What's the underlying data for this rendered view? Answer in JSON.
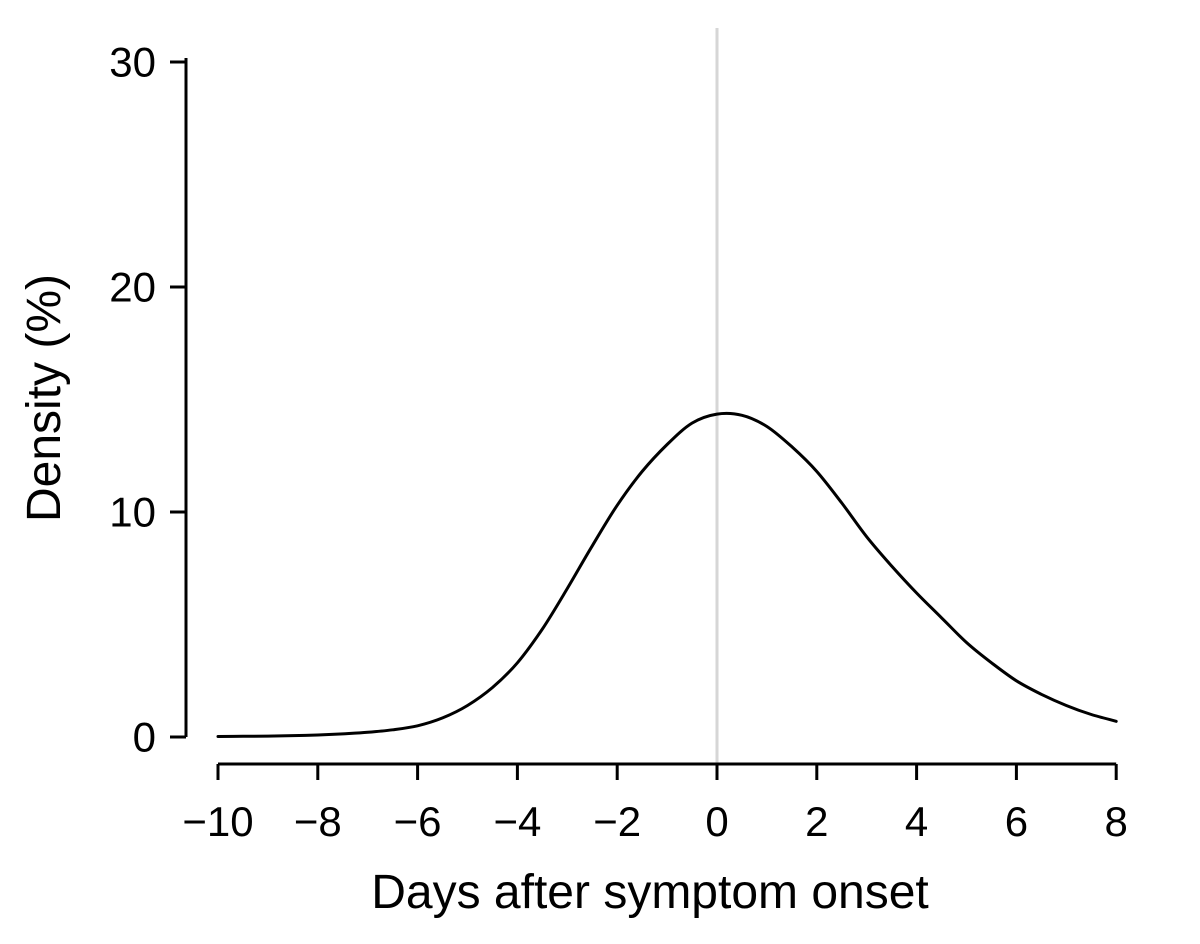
{
  "chart_data": {
    "type": "line",
    "title": "",
    "xlabel": "Days after symptom onset",
    "ylabel": "Density (%)",
    "xlim": [
      -10,
      8
    ],
    "ylim": [
      0,
      30
    ],
    "grid": false,
    "legend": false,
    "x_ticks": {
      "values": [
        -10,
        -8,
        -6,
        -4,
        -2,
        0,
        2,
        4,
        6,
        8
      ],
      "labels": [
        "−10",
        "−8",
        "−6",
        "−4",
        "−2",
        "0",
        "2",
        "4",
        "6",
        "8"
      ]
    },
    "y_ticks": {
      "values": [
        0,
        10,
        20,
        30
      ],
      "labels": [
        "0",
        "10",
        "20",
        "30"
      ]
    },
    "reference_line": {
      "axis": "vertical",
      "x": 0,
      "color": "#d6d6d6"
    },
    "series": [
      {
        "name": "density-curve",
        "color": "#000000",
        "x": [
          -10,
          -9.5,
          -9,
          -8.5,
          -8,
          -7.5,
          -7,
          -6.5,
          -6,
          -5.5,
          -5,
          -4.5,
          -4,
          -3.5,
          -3,
          -2.5,
          -2,
          -1.5,
          -1,
          -0.5,
          0,
          0.5,
          1,
          1.5,
          2,
          2.5,
          3,
          3.5,
          4,
          4.5,
          5,
          5.5,
          6,
          6.5,
          7,
          7.5,
          8
        ],
        "y": [
          0.02,
          0.03,
          0.04,
          0.06,
          0.09,
          0.14,
          0.21,
          0.32,
          0.5,
          0.85,
          1.4,
          2.2,
          3.3,
          4.8,
          6.6,
          8.5,
          10.3,
          11.8,
          13.0,
          13.95,
          14.35,
          14.3,
          13.8,
          12.9,
          11.8,
          10.4,
          8.9,
          7.6,
          6.4,
          5.3,
          4.2,
          3.3,
          2.5,
          1.9,
          1.4,
          1.0,
          0.7
        ]
      }
    ]
  },
  "colors": {
    "background": "#ffffff",
    "axis": "#000000",
    "curve": "#000000",
    "reference_line": "#d6d6d6"
  }
}
